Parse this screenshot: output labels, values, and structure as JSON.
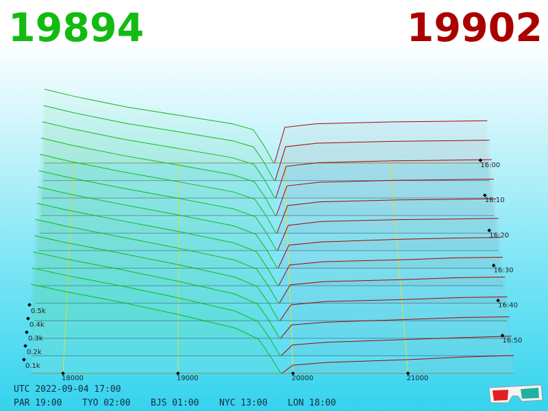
{
  "chart_data": {
    "type": "depth3d",
    "bid": 19894,
    "ask": 19902,
    "bid_color": "#11bb11",
    "ask_color": "#aa0000",
    "xlim": [
      17720,
      21920
    ],
    "xticks": [
      18000,
      19000,
      20000,
      21000
    ],
    "zlim": [
      0,
      2000
    ],
    "zticks": [
      {
        "value": 100,
        "label": "0.1k"
      },
      {
        "value": 200,
        "label": "0.2k"
      },
      {
        "value": 300,
        "label": "0.3k"
      },
      {
        "value": 400,
        "label": "0.4k"
      },
      {
        "value": 500,
        "label": "0.5k"
      }
    ],
    "time_ticks": [
      "16:00",
      "16:10",
      "16:20",
      "16:30",
      "16:40",
      "16:50"
    ],
    "bid_prices": [
      17720,
      18000,
      18500,
      19000,
      19500,
      19700,
      19800,
      19894
    ],
    "ask_prices": [
      19902,
      20000,
      20300,
      21000,
      21500,
      21920
    ],
    "snapshots": [
      {
        "bids": [
          620,
          560,
          470,
          400,
          330,
          280,
          150,
          0
        ],
        "asks": [
          0,
          300,
          330,
          345,
          350,
          355
        ]
      },
      {
        "bids": [
          622,
          563,
          474,
          403,
          330,
          278,
          148,
          0
        ],
        "asks": [
          0,
          280,
          310,
          325,
          330,
          335
        ]
      },
      {
        "bids": [
          625,
          567,
          478,
          405,
          330,
          275,
          147,
          0
        ],
        "asks": [
          0,
          260,
          290,
          305,
          310,
          315
        ]
      },
      {
        "bids": [
          628,
          570,
          483,
          408,
          330,
          273,
          145,
          0
        ],
        "asks": [
          0,
          240,
          270,
          285,
          290,
          295
        ]
      },
      {
        "bids": [
          630,
          573,
          487,
          410,
          330,
          270,
          143,
          0
        ],
        "asks": [
          0,
          220,
          250,
          265,
          270,
          275
        ]
      },
      {
        "bids": [
          632,
          577,
          491,
          413,
          330,
          268,
          142,
          0
        ],
        "asks": [
          0,
          200,
          230,
          245,
          250,
          255
        ]
      },
      {
        "bids": [
          635,
          580,
          495,
          415,
          330,
          265,
          140,
          0
        ],
        "asks": [
          0,
          180,
          205,
          225,
          235,
          240
        ]
      },
      {
        "bids": [
          637,
          583,
          499,
          418,
          330,
          263,
          138,
          0
        ],
        "asks": [
          0,
          160,
          185,
          200,
          215,
          220
        ]
      },
      {
        "bids": [
          640,
          587,
          503,
          420,
          330,
          260,
          137,
          0
        ],
        "asks": [
          0,
          140,
          165,
          180,
          195,
          200
        ]
      },
      {
        "bids": [
          642,
          590,
          508,
          423,
          330,
          258,
          135,
          0
        ],
        "asks": [
          0,
          120,
          145,
          160,
          175,
          180
        ]
      },
      {
        "bids": [
          645,
          593,
          512,
          425,
          330,
          255,
          133,
          0
        ],
        "asks": [
          0,
          100,
          120,
          140,
          155,
          160
        ]
      },
      {
        "bids": [
          648,
          597,
          516,
          428,
          330,
          253,
          132,
          0
        ],
        "asks": [
          0,
          80,
          100,
          120,
          135,
          145
        ]
      },
      {
        "bids": [
          650,
          600,
          520,
          430,
          330,
          250,
          130,
          0
        ],
        "asks": [
          0,
          60,
          80,
          100,
          120,
          130
        ]
      }
    ]
  },
  "footer": {
    "utc": "UTC 2022-09-04 17:00",
    "clocks": [
      "PAR 19:00",
      "TYO 02:00",
      "BJS 01:00",
      "NYC 13:00",
      "LON 18:00"
    ]
  }
}
